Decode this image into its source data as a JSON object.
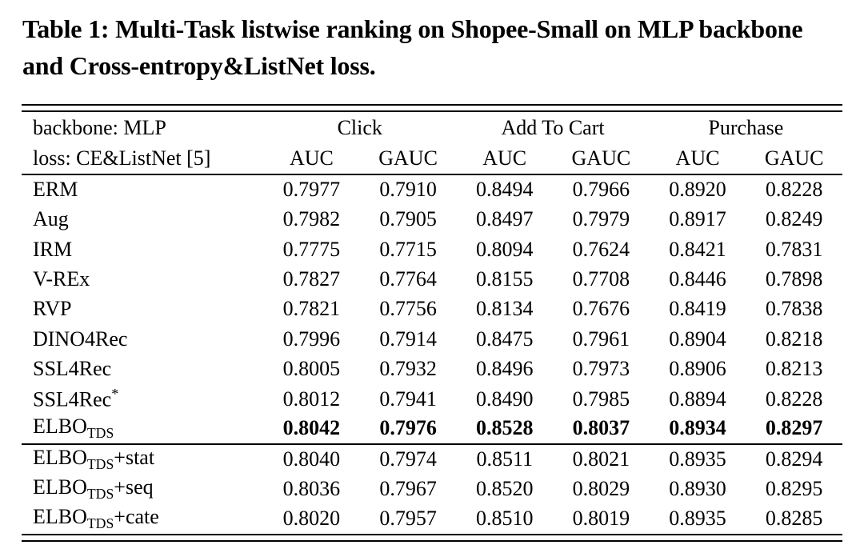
{
  "caption": "Table 1: Multi-Task listwise ranking on Shopee-Small on MLP backbone and Cross-entropy&ListNet loss.",
  "colors": {
    "text": "#000000",
    "background": "#ffffff",
    "rule": "#000000"
  },
  "table": {
    "header": {
      "left_line1": "backbone: MLP",
      "left_line2": "loss: CE&ListNet [5]",
      "groups": [
        "Click",
        "Add To Cart",
        "Purchase"
      ],
      "metrics": [
        "AUC",
        "GAUC",
        "AUC",
        "GAUC",
        "AUC",
        "GAUC"
      ]
    },
    "rows": [
      {
        "method": {
          "base": "ERM",
          "sup": "",
          "sub": "",
          "suffix": ""
        },
        "bold": false,
        "rule_below": false,
        "values": [
          "0.7977",
          "0.7910",
          "0.8494",
          "0.7966",
          "0.8920",
          "0.8228"
        ]
      },
      {
        "method": {
          "base": "Aug",
          "sup": "",
          "sub": "",
          "suffix": ""
        },
        "bold": false,
        "rule_below": false,
        "values": [
          "0.7982",
          "0.7905",
          "0.8497",
          "0.7979",
          "0.8917",
          "0.8249"
        ]
      },
      {
        "method": {
          "base": "IRM",
          "sup": "",
          "sub": "",
          "suffix": ""
        },
        "bold": false,
        "rule_below": false,
        "values": [
          "0.7775",
          "0.7715",
          "0.8094",
          "0.7624",
          "0.8421",
          "0.7831"
        ]
      },
      {
        "method": {
          "base": "V-REx",
          "sup": "",
          "sub": "",
          "suffix": ""
        },
        "bold": false,
        "rule_below": false,
        "values": [
          "0.7827",
          "0.7764",
          "0.8155",
          "0.7708",
          "0.8446",
          "0.7898"
        ]
      },
      {
        "method": {
          "base": "RVP",
          "sup": "",
          "sub": "",
          "suffix": ""
        },
        "bold": false,
        "rule_below": false,
        "values": [
          "0.7821",
          "0.7756",
          "0.8134",
          "0.7676",
          "0.8419",
          "0.7838"
        ]
      },
      {
        "method": {
          "base": "DINO4Rec",
          "sup": "",
          "sub": "",
          "suffix": ""
        },
        "bold": false,
        "rule_below": false,
        "values": [
          "0.7996",
          "0.7914",
          "0.8475",
          "0.7961",
          "0.8904",
          "0.8218"
        ]
      },
      {
        "method": {
          "base": "SSL4Rec",
          "sup": "",
          "sub": "",
          "suffix": ""
        },
        "bold": false,
        "rule_below": false,
        "values": [
          "0.8005",
          "0.7932",
          "0.8496",
          "0.7973",
          "0.8906",
          "0.8213"
        ]
      },
      {
        "method": {
          "base": "SSL4Rec",
          "sup": "*",
          "sub": "",
          "suffix": ""
        },
        "bold": false,
        "rule_below": false,
        "values": [
          "0.8012",
          "0.7941",
          "0.8490",
          "0.7985",
          "0.8894",
          "0.8228"
        ]
      },
      {
        "method": {
          "base": "ELBO",
          "sup": "",
          "sub": "TDS",
          "suffix": ""
        },
        "bold": true,
        "rule_below": true,
        "values": [
          "0.8042",
          "0.7976",
          "0.8528",
          "0.8037",
          "0.8934",
          "0.8297"
        ]
      },
      {
        "method": {
          "base": "ELBO",
          "sup": "",
          "sub": "TDS",
          "suffix": "+stat"
        },
        "bold": false,
        "rule_below": false,
        "values": [
          "0.8040",
          "0.7974",
          "0.8511",
          "0.8021",
          "0.8935",
          "0.8294"
        ]
      },
      {
        "method": {
          "base": "ELBO",
          "sup": "",
          "sub": "TDS",
          "suffix": "+seq"
        },
        "bold": false,
        "rule_below": false,
        "values": [
          "0.8036",
          "0.7967",
          "0.8520",
          "0.8029",
          "0.8930",
          "0.8295"
        ]
      },
      {
        "method": {
          "base": "ELBO",
          "sup": "",
          "sub": "TDS",
          "suffix": "+cate"
        },
        "bold": false,
        "rule_below": false,
        "values": [
          "0.8020",
          "0.7957",
          "0.8510",
          "0.8019",
          "0.8935",
          "0.8285"
        ]
      }
    ]
  }
}
